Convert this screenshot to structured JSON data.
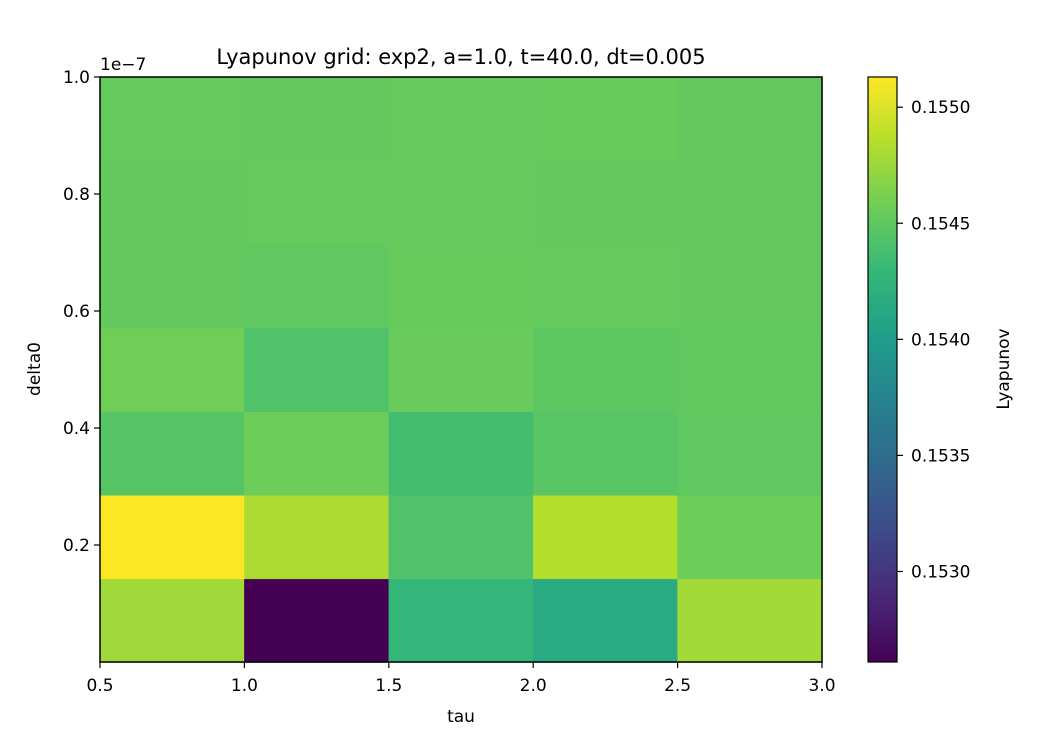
{
  "chart_data": {
    "type": "heatmap",
    "title": "Lyapunov grid: exp2, a=1.0, t=40.0, dt=0.005",
    "xlabel": "tau",
    "ylabel": "delta0",
    "y_offset_label": "1e−7",
    "colorbar_label": "Lyapunov",
    "colormap": "viridis",
    "xlim": [
      0.5,
      3.0
    ],
    "ylim": [
      0.0,
      1.0
    ],
    "x_ticks": [
      0.5,
      1.0,
      1.5,
      2.0,
      2.5,
      3.0
    ],
    "x_tick_labels": [
      "0.5",
      "1.0",
      "1.5",
      "2.0",
      "2.5",
      "3.0"
    ],
    "y_ticks": [
      0.2,
      0.4,
      0.6,
      0.8,
      1.0
    ],
    "y_tick_labels": [
      "0.2",
      "0.4",
      "0.6",
      "0.8",
      "1.0"
    ],
    "x_edges": [
      0.5,
      1.0,
      1.5,
      2.0,
      2.5,
      3.0
    ],
    "y_edges": [
      0.0,
      0.1429,
      0.2857,
      0.4286,
      0.5714,
      0.7143,
      0.8571,
      1.0
    ],
    "clim": [
      0.15261,
      0.15513
    ],
    "colorbar_ticks": [
      0.153,
      0.1535,
      0.154,
      0.1545,
      0.155
    ],
    "colorbar_tick_labels": [
      "0.1530",
      "0.1535",
      "0.1540",
      "0.1545",
      "0.1550"
    ],
    "rows": [
      [
        0.15477,
        0.15261,
        0.15428,
        0.15415,
        0.15478
      ],
      [
        0.15513,
        0.15482,
        0.15443,
        0.15485,
        0.15457
      ],
      [
        0.15446,
        0.15457,
        0.15437,
        0.15447,
        0.1545
      ],
      [
        0.15458,
        0.15443,
        0.15455,
        0.15449,
        0.15451
      ],
      [
        0.15452,
        0.1545,
        0.15454,
        0.15453,
        0.15452
      ],
      [
        0.15452,
        0.15453,
        0.15453,
        0.15452,
        0.15452
      ],
      [
        0.15453,
        0.15452,
        0.15453,
        0.15454,
        0.15452
      ]
    ]
  }
}
